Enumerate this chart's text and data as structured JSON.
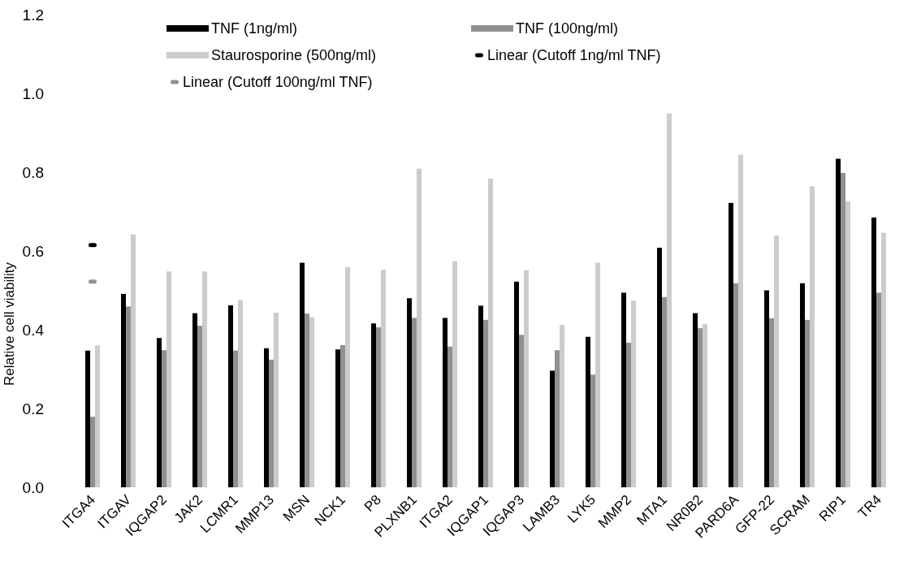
{
  "chart_data": {
    "type": "bar",
    "ylabel": "Relative cell viability",
    "categories": [
      "ITGA4",
      "ITGAV",
      "IQGAP2",
      "JAK2",
      "LCMR1",
      "MMP13",
      "MSN",
      "NCK1",
      "P8",
      "PLXNB1",
      "ITGA2",
      "IQGAP1",
      "IQGAP3",
      "LAMB3",
      "LYK5",
      "MMP2",
      "MTA1",
      "NR0B2",
      "PARD6A",
      "GFP-22",
      "SCRAM",
      "RIP1",
      "TR4"
    ],
    "series": [
      {
        "name": "TNF (1ng/ml)",
        "color": "#000000",
        "values": [
          0.347,
          0.491,
          0.379,
          0.442,
          0.462,
          0.353,
          0.57,
          0.35,
          0.416,
          0.48,
          0.43,
          0.461,
          0.522,
          0.296,
          0.382,
          0.494,
          0.608,
          0.442,
          0.722,
          0.5,
          0.518,
          0.834,
          0.685
        ]
      },
      {
        "name": "TNF (100ng/ml)",
        "color": "#909090",
        "values": [
          0.179,
          0.459,
          0.348,
          0.41,
          0.347,
          0.324,
          0.441,
          0.361,
          0.406,
          0.43,
          0.357,
          0.425,
          0.387,
          0.348,
          0.286,
          0.367,
          0.483,
          0.404,
          0.518,
          0.429,
          0.425,
          0.798,
          0.494
        ]
      },
      {
        "name": "Staurosporine (500ng/ml)",
        "color": "#cccccc",
        "values": [
          0.36,
          0.642,
          0.548,
          0.548,
          0.475,
          0.443,
          0.432,
          0.559,
          0.552,
          0.809,
          0.574,
          0.784,
          0.551,
          0.412,
          0.57,
          0.474,
          0.949,
          0.414,
          0.844,
          0.639,
          0.764,
          0.726,
          0.646
        ]
      },
      {
        "name": "Linear (Cutoff 1ng/ml TNF)",
        "type": "line",
        "marker": "square",
        "color": "#000000",
        "values": [
          0.615,
          null,
          null,
          null,
          null,
          null,
          null,
          null,
          null,
          null,
          null,
          null,
          null,
          null,
          null,
          null,
          null,
          null,
          null,
          null,
          null,
          null,
          null
        ]
      },
      {
        "name": "Linear (Cutoff 100ng/ml TNF)",
        "type": "line",
        "marker": "square",
        "color": "#909090",
        "values": [
          0.522,
          null,
          null,
          null,
          null,
          null,
          null,
          null,
          null,
          null,
          null,
          null,
          null,
          null,
          null,
          null,
          null,
          null,
          null,
          null,
          null,
          null,
          null
        ]
      }
    ],
    "ylim": [
      0,
      1.2
    ],
    "yticks": [
      {
        "value": 0,
        "label": "0.0"
      },
      0.2,
      0.4,
      0.6,
      0.8,
      {
        "value": 1,
        "label": "1.0"
      },
      1.2
    ],
    "legend": "top",
    "grid": false
  }
}
